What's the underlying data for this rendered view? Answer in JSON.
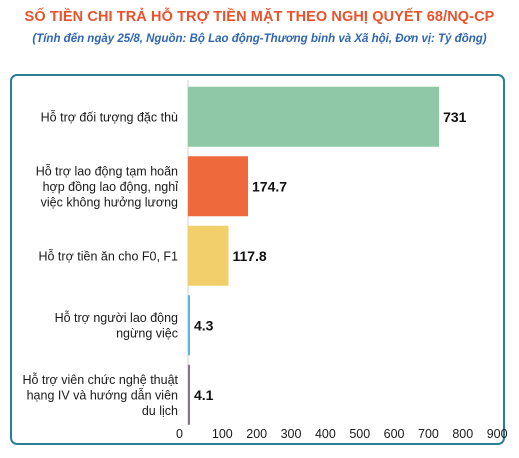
{
  "header": {
    "title": "SỐ TIỀN CHI TRẢ HỖ TRỢ TIỀN MẶT THEO NGHỊ QUYẾT 68/NQ-CP",
    "subtitle": "(Tính đến ngày 25/8, Nguồn: Bộ Lao động-Thương binh và Xã hội, Đơn vị: Tỷ đồng)"
  },
  "colors": {
    "title": "#e8532b",
    "subtitle": "#2f66b3",
    "frame": "#2a7f98"
  },
  "chart_data": {
    "type": "bar",
    "orientation": "horizontal",
    "title": "SỐ TIỀN CHI TRẢ HỖ TRỢ TIỀN MẶT THEO NGHỊ QUYẾT 68/NQ-CP",
    "subtitle": "(Tính đến ngày 25/8, Nguồn: Bộ Lao động-Thương binh và Xã hội, Đơn vị: Tỷ đồng)",
    "categories": [
      [
        "Hỗ trợ đối tượng đặc thù"
      ],
      [
        "Hỗ trợ lao động tạm hoãn",
        "hợp đồng lao động, nghỉ",
        "việc không hưởng lương"
      ],
      [
        "Hỗ trợ tiền ăn cho F0, F1"
      ],
      [
        "Hỗ trợ người lao động",
        "ngừng việc"
      ],
      [
        "Hỗ trợ viên chức nghệ thuật",
        "hạng IV và hướng dẫn viên",
        "du lịch"
      ]
    ],
    "values": [
      731,
      174.7,
      117.8,
      4.3,
      4.1
    ],
    "value_labels": [
      "731",
      "174.7",
      "117.8",
      "4.3",
      "4.1"
    ],
    "bar_colors": [
      "#8ec8a6",
      "#ee6a3c",
      "#f2cf6b",
      "#5ab4e2",
      "#8a6e8e"
    ],
    "xlim": [
      0,
      900
    ],
    "xticks": [
      "0",
      "100",
      "200",
      "300",
      "400",
      "500",
      "600",
      "700",
      "800",
      "900"
    ],
    "xtick_values": [
      0,
      100,
      200,
      300,
      400,
      500,
      600,
      700,
      800,
      900
    ],
    "grid": false,
    "legend": "none"
  }
}
